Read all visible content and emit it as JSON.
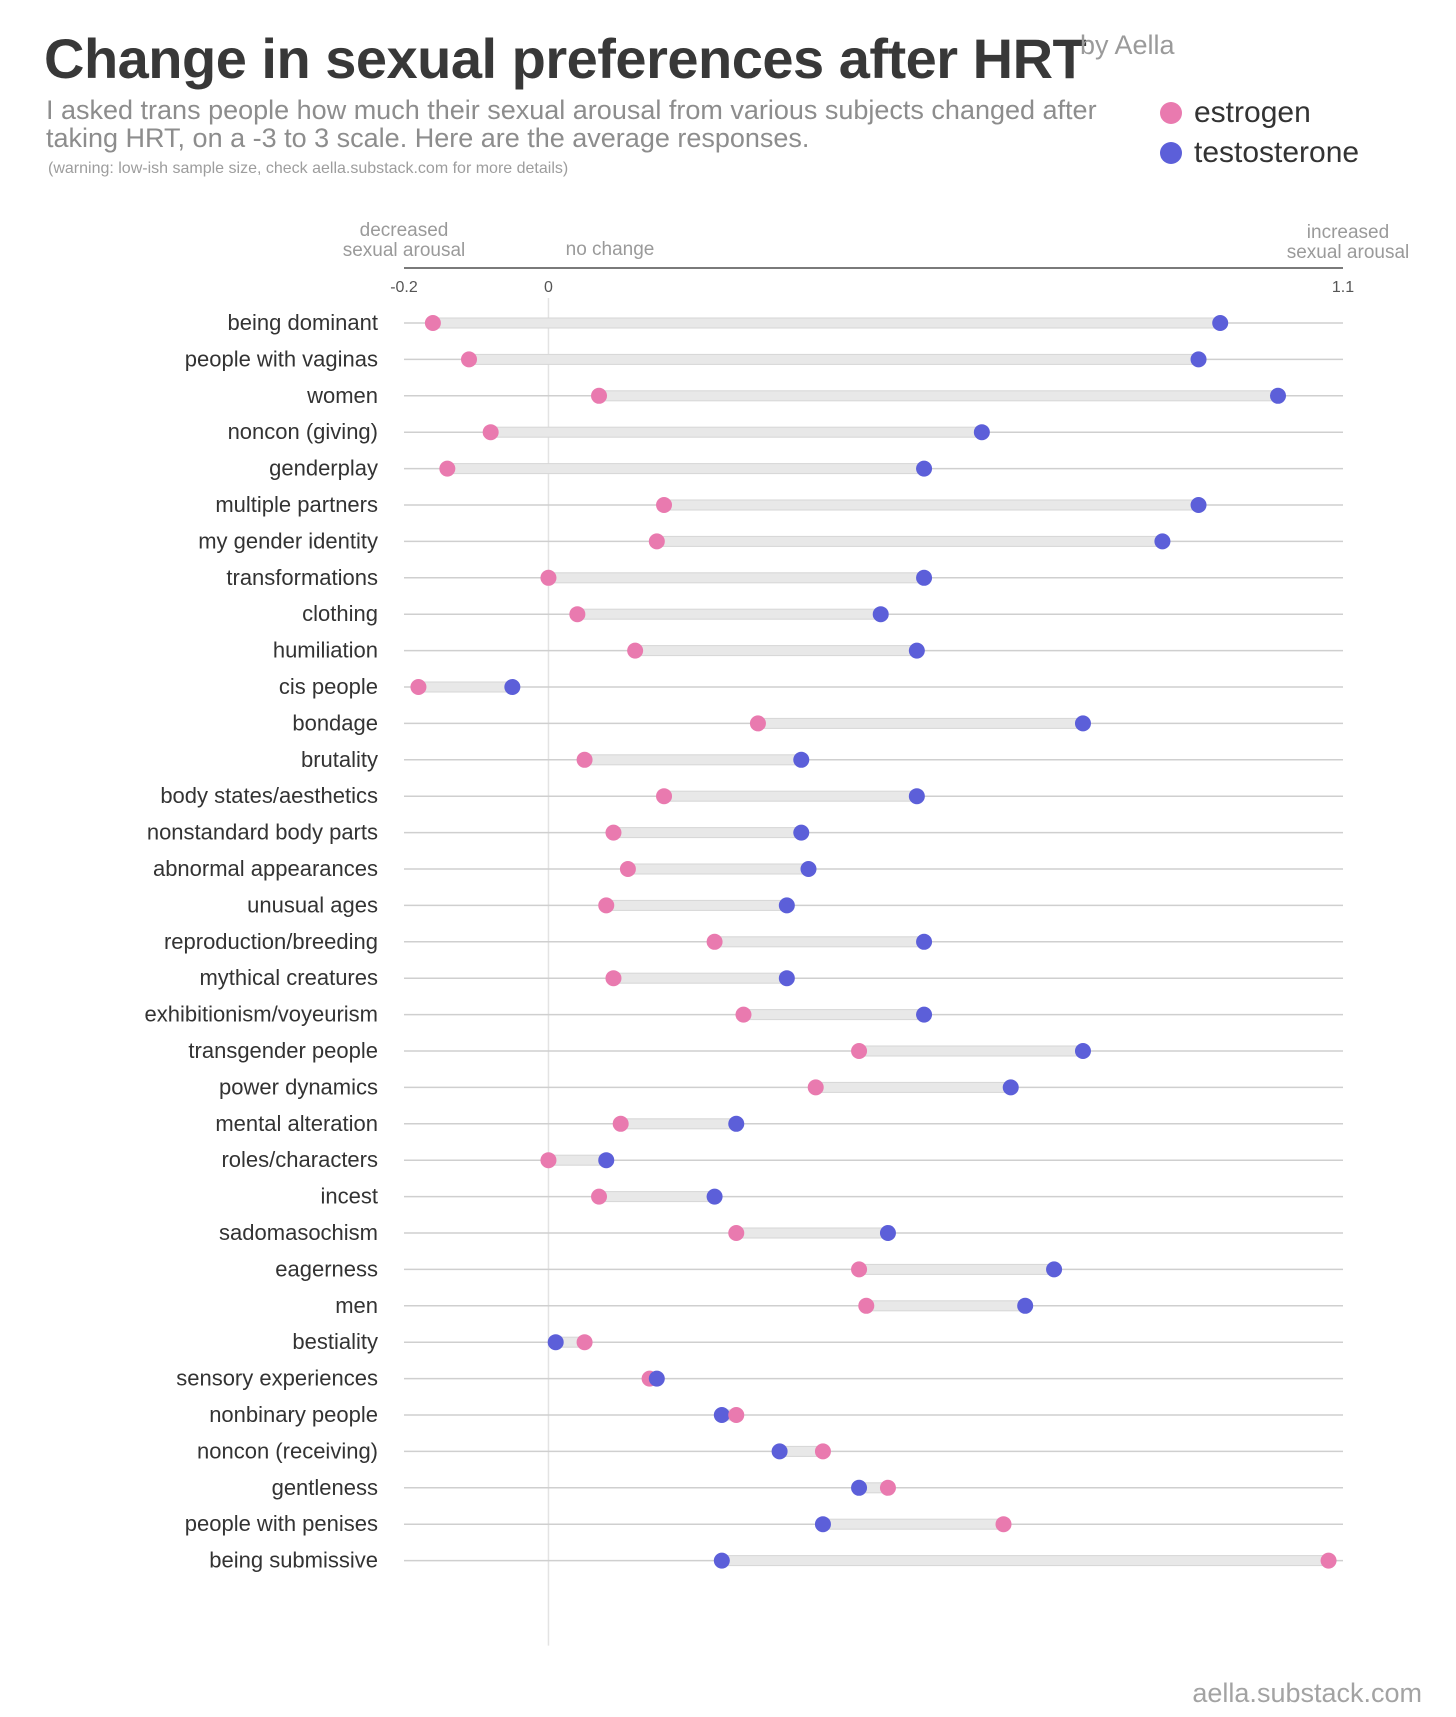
{
  "header": {
    "title": "Change in sexual preferences after HRT",
    "byline": "by Aella",
    "subtitle": "I asked trans people how much their sexual arousal from various subjects changed after taking HRT, on a -3 to 3 scale. Here are the average responses.",
    "warning": "(warning: low-ish sample size, check aella.substack.com for more details)"
  },
  "legend": [
    {
      "label": "estrogen",
      "color": "#e97aaf"
    },
    {
      "label": "testosterone",
      "color": "#5c5fd9"
    }
  ],
  "axis_notes": {
    "left": [
      "decreased",
      "sexual arousal"
    ],
    "center": "no change",
    "right": [
      "increased",
      "sexual arousal"
    ]
  },
  "footer": "aella.substack.com",
  "chart_data": {
    "type": "dumbbell",
    "title": "Change in sexual preferences after HRT",
    "xlim": [
      -0.2,
      1.1
    ],
    "ticks": [
      {
        "value": -0.2,
        "label": "-0.2"
      },
      {
        "value": 0,
        "label": "0"
      },
      {
        "value": 1.1,
        "label": "1.1"
      }
    ],
    "series": [
      {
        "name": "estrogen",
        "color": "#e97aaf"
      },
      {
        "name": "testosterone",
        "color": "#5c5fd9"
      }
    ],
    "categories": [
      {
        "label": "being dominant",
        "estrogen": -0.16,
        "testosterone": 0.93
      },
      {
        "label": "people with vaginas",
        "estrogen": -0.11,
        "testosterone": 0.9
      },
      {
        "label": "women",
        "estrogen": 0.07,
        "testosterone": 1.01
      },
      {
        "label": "noncon (giving)",
        "estrogen": -0.08,
        "testosterone": 0.6
      },
      {
        "label": "genderplay",
        "estrogen": -0.14,
        "testosterone": 0.52
      },
      {
        "label": "multiple partners",
        "estrogen": 0.16,
        "testosterone": 0.9
      },
      {
        "label": "my gender identity",
        "estrogen": 0.15,
        "testosterone": 0.85
      },
      {
        "label": "transformations",
        "estrogen": 0.0,
        "testosterone": 0.52
      },
      {
        "label": "clothing",
        "estrogen": 0.04,
        "testosterone": 0.46
      },
      {
        "label": "humiliation",
        "estrogen": 0.12,
        "testosterone": 0.51
      },
      {
        "label": "cis people",
        "estrogen": -0.18,
        "testosterone": -0.05
      },
      {
        "label": "bondage",
        "estrogen": 0.29,
        "testosterone": 0.74
      },
      {
        "label": "brutality",
        "estrogen": 0.05,
        "testosterone": 0.35
      },
      {
        "label": "body states/aesthetics",
        "estrogen": 0.16,
        "testosterone": 0.51
      },
      {
        "label": "nonstandard body parts",
        "estrogen": 0.09,
        "testosterone": 0.35
      },
      {
        "label": "abnormal appearances",
        "estrogen": 0.11,
        "testosterone": 0.36
      },
      {
        "label": "unusual ages",
        "estrogen": 0.08,
        "testosterone": 0.33
      },
      {
        "label": "reproduction/breeding",
        "estrogen": 0.23,
        "testosterone": 0.52
      },
      {
        "label": "mythical creatures",
        "estrogen": 0.09,
        "testosterone": 0.33
      },
      {
        "label": "exhibitionism/voyeurism",
        "estrogen": 0.27,
        "testosterone": 0.52
      },
      {
        "label": "transgender people",
        "estrogen": 0.43,
        "testosterone": 0.74
      },
      {
        "label": "power dynamics",
        "estrogen": 0.37,
        "testosterone": 0.64
      },
      {
        "label": "mental alteration",
        "estrogen": 0.1,
        "testosterone": 0.26
      },
      {
        "label": "roles/characters",
        "estrogen": 0.0,
        "testosterone": 0.08
      },
      {
        "label": "incest",
        "estrogen": 0.07,
        "testosterone": 0.23
      },
      {
        "label": "sadomasochism",
        "estrogen": 0.26,
        "testosterone": 0.47
      },
      {
        "label": "eagerness",
        "estrogen": 0.43,
        "testosterone": 0.7
      },
      {
        "label": "men",
        "estrogen": 0.44,
        "testosterone": 0.66
      },
      {
        "label": "bestiality",
        "estrogen": 0.05,
        "testosterone": 0.01
      },
      {
        "label": "sensory experiences",
        "estrogen": 0.14,
        "testosterone": 0.15
      },
      {
        "label": "nonbinary people",
        "estrogen": 0.26,
        "testosterone": 0.24
      },
      {
        "label": "noncon (receiving)",
        "estrogen": 0.38,
        "testosterone": 0.32
      },
      {
        "label": "gentleness",
        "estrogen": 0.47,
        "testosterone": 0.43
      },
      {
        "label": "people with penises",
        "estrogen": 0.63,
        "testosterone": 0.38
      },
      {
        "label": "being submissive",
        "estrogen": 1.08,
        "testosterone": 0.24
      }
    ]
  }
}
